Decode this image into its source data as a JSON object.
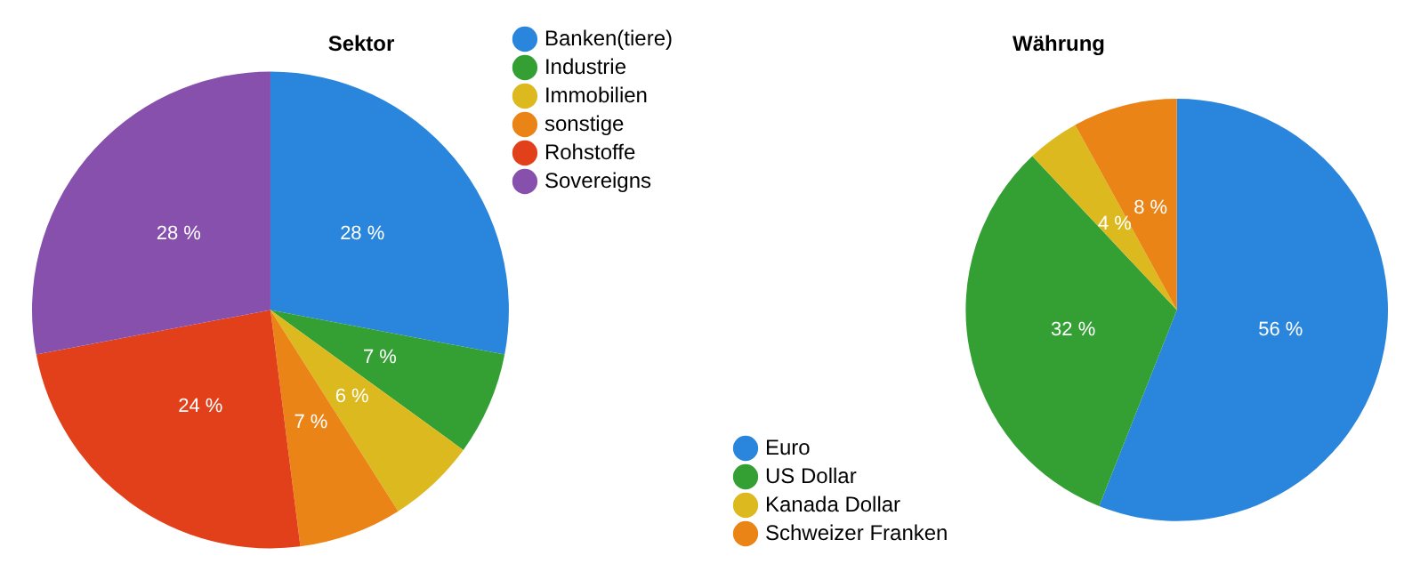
{
  "chart_data": [
    {
      "type": "pie",
      "title": "Sektor",
      "categories": [
        "Banken(tiere)",
        "Industrie",
        "Immobilien",
        "sonstige",
        "Rohstoffe",
        "Sovereigns"
      ],
      "values": [
        28,
        7,
        6,
        7,
        24,
        28
      ],
      "value_labels": [
        "28 %",
        "7 %",
        "6 %",
        "7 %",
        "24 %",
        "28 %"
      ],
      "colors": [
        "#2a86dc",
        "#34a034",
        "#dcb91e",
        "#ea8416",
        "#e2401a",
        "#8650ac"
      ],
      "legend": "top right"
    },
    {
      "type": "pie",
      "title": "Währung",
      "categories": [
        "Euro",
        "US Dollar",
        "Kanada Dollar",
        "Schweizer Franken"
      ],
      "values": [
        56,
        32,
        4,
        8
      ],
      "value_labels": [
        "56 %",
        "32 %",
        "4 %",
        "8 %"
      ],
      "colors": [
        "#2a86dc",
        "#34a034",
        "#dcb91e",
        "#ea8416"
      ],
      "legend": "bottom left"
    }
  ]
}
